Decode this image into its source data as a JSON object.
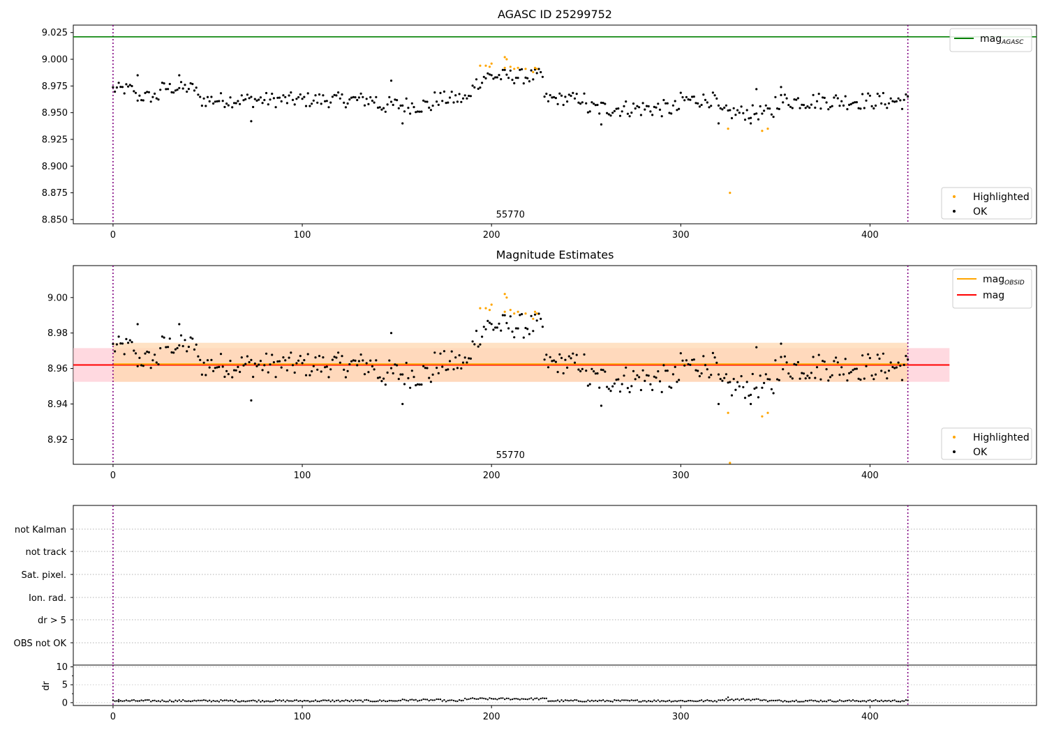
{
  "title": "AGASC ID 25299752",
  "xaxis": {
    "range": [
      -21,
      488
    ],
    "ticks": [
      0,
      100,
      200,
      300,
      400
    ]
  },
  "obsid_label": "55770",
  "vlines_x": [
    0,
    420
  ],
  "colors": {
    "ok": "#000000",
    "highlighted": "#ffa500",
    "agasc_line": "#008000",
    "mag_line": "#ff0000",
    "obsid_line": "#ffa500",
    "vline": "#800080",
    "band_red": "#ffc0cb",
    "band_orange": "#ffd8b0"
  },
  "chart_data": [
    {
      "type": "scatter",
      "title": "AGASC ID 25299752",
      "ylim": [
        8.846,
        9.032
      ],
      "yticks": [
        "8.850",
        "8.875",
        "8.900",
        "8.925",
        "8.950",
        "8.975",
        "9.000",
        "9.025"
      ],
      "hline": {
        "name": "mag",
        "sub": "AGASC",
        "value": 9.021,
        "color": "#008000"
      },
      "legend_lines": [
        {
          "label": "mag",
          "sub": "AGASC",
          "color": "#008000"
        }
      ],
      "legend_points": [
        {
          "label": "Highlighted",
          "color": "#ffa500"
        },
        {
          "label": "OK",
          "color": "#000000"
        }
      ],
      "annotation": "55770"
    },
    {
      "type": "scatter",
      "title": "Magnitude Estimates",
      "ylim": [
        8.906,
        9.018
      ],
      "yticks": [
        "8.92",
        "8.94",
        "8.96",
        "8.98",
        "9.00"
      ],
      "mag_obsid": {
        "value": 8.9625,
        "band": [
          8.9525,
          8.9745
        ],
        "x_range": [
          0,
          420
        ]
      },
      "mag": {
        "value": 8.962,
        "band": [
          8.9525,
          8.9715
        ],
        "x_range": [
          -21,
          442
        ]
      },
      "legend_lines": [
        {
          "label": "mag",
          "sub": "OBSID",
          "color": "#ffa500"
        },
        {
          "label": "mag",
          "sub": "",
          "color": "#ff0000"
        }
      ],
      "legend_points": [
        {
          "label": "Highlighted",
          "color": "#ffa500"
        },
        {
          "label": "OK",
          "color": "#000000"
        }
      ],
      "annotation": "55770"
    },
    {
      "type": "table",
      "categories": [
        "not Kalman",
        "not track",
        "Sat. pixel.",
        "Ion. rad.",
        "dr > 5",
        "OBS not OK"
      ]
    },
    {
      "type": "scatter",
      "ylabel": "dr",
      "ylim": [
        -0.8,
        10.5
      ],
      "yticks": [
        "0",
        "5",
        "10"
      ]
    }
  ],
  "series_segments": [
    {
      "x0": 0,
      "x1": 12,
      "mean": 8.972,
      "amp": 0.006
    },
    {
      "x0": 12,
      "x1": 25,
      "mean": 8.965,
      "amp": 0.006
    },
    {
      "x0": 25,
      "x1": 45,
      "mean": 8.973,
      "amp": 0.006
    },
    {
      "x0": 45,
      "x1": 140,
      "mean": 8.962,
      "amp": 0.007
    },
    {
      "x0": 140,
      "x1": 170,
      "mean": 8.957,
      "amp": 0.008
    },
    {
      "x0": 170,
      "x1": 190,
      "mean": 8.963,
      "amp": 0.007
    },
    {
      "x0": 190,
      "x1": 196,
      "mean": 8.978,
      "amp": 0.006
    },
    {
      "x0": 196,
      "x1": 228,
      "mean": 8.984,
      "amp": 0.007
    },
    {
      "x0": 228,
      "x1": 250,
      "mean": 8.963,
      "amp": 0.006
    },
    {
      "x0": 250,
      "x1": 300,
      "mean": 8.954,
      "amp": 0.008
    },
    {
      "x0": 300,
      "x1": 320,
      "mean": 8.962,
      "amp": 0.007
    },
    {
      "x0": 320,
      "x1": 350,
      "mean": 8.95,
      "amp": 0.007
    },
    {
      "x0": 350,
      "x1": 421,
      "mean": 8.961,
      "amp": 0.008
    }
  ],
  "highlighted_points": [
    [
      194,
      8.994
    ],
    [
      197,
      8.994
    ],
    [
      199,
      8.993
    ],
    [
      200,
      8.996
    ],
    [
      207,
      9.002
    ],
    [
      208,
      9.0
    ],
    [
      207,
      8.992
    ],
    [
      210,
      8.993
    ],
    [
      212,
      8.991
    ],
    [
      214,
      8.992
    ],
    [
      218,
      8.991
    ],
    [
      222,
      8.988
    ],
    [
      223,
      8.992
    ],
    [
      224,
      8.991
    ],
    [
      325,
      8.935
    ],
    [
      326,
      8.875
    ],
    [
      343,
      8.933
    ],
    [
      346,
      8.935
    ]
  ]
}
